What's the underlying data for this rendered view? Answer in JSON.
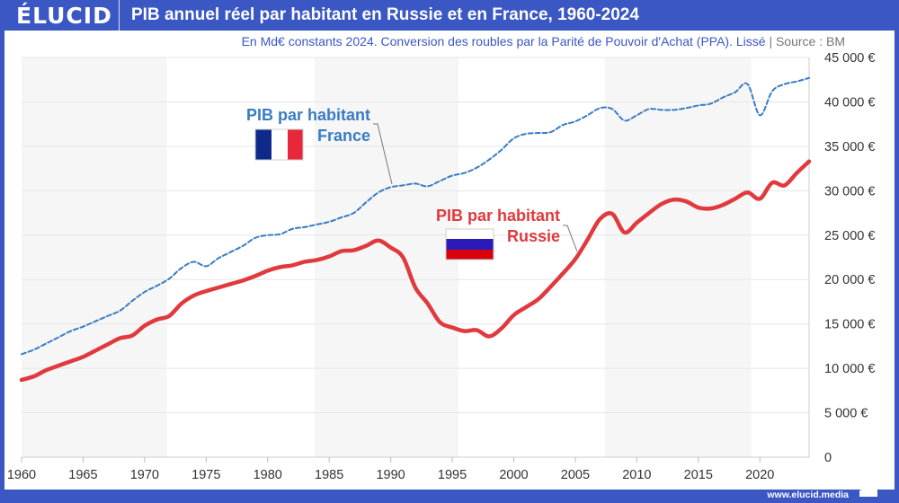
{
  "header": {
    "logo": "ÉLUCID",
    "title": "PIB annuel réel par habitant en Russie et en France, 1960-2024"
  },
  "subtitle": {
    "text": "En Md€ constants 2024. Conversion des roubles par la Parité de Pouvoir d'Achat (PPA). Lissé",
    "separator": "|",
    "source": "Source : BM"
  },
  "footer": {
    "url": "www.elucid.media"
  },
  "colors": {
    "brand": "#3a57c4",
    "france": "#3a7cc4",
    "russia": "#e0393e",
    "band": "#f6f6f6",
    "grid": "#e6e6e6"
  },
  "chart_data": {
    "type": "line",
    "title": "PIB annuel réel par habitant en Russie et en France, 1960-2024",
    "xlim": [
      1960,
      2024
    ],
    "ylim": [
      0,
      45000
    ],
    "x_ticks": [
      1960,
      1965,
      1970,
      1975,
      1980,
      1985,
      1990,
      1995,
      2000,
      2005,
      2010,
      2015,
      2020
    ],
    "x_tick_labels": [
      "1960",
      "1965",
      "1970",
      "1975",
      "1980",
      "1985",
      "1990",
      "1995",
      "2000",
      "2005",
      "2010",
      "2015",
      "2020"
    ],
    "y_ticks": [
      0,
      5000,
      10000,
      15000,
      20000,
      25000,
      30000,
      35000,
      40000,
      45000
    ],
    "y_tick_labels": [
      "0",
      "5 000 €",
      "10 000 €",
      "15 000 €",
      "20 000 €",
      "25 000 €",
      "30 000 €",
      "35 000 €",
      "40 000 €",
      "45 000 €"
    ],
    "y_axis_side": "right",
    "grid": true,
    "shaded_periods": [
      [
        1960,
        1971.8
      ],
      [
        1983.8,
        1995.5
      ],
      [
        2007.4,
        2019.3
      ]
    ],
    "x": [
      1960,
      1961,
      1962,
      1963,
      1964,
      1965,
      1966,
      1967,
      1968,
      1969,
      1970,
      1971,
      1972,
      1973,
      1974,
      1975,
      1976,
      1977,
      1978,
      1979,
      1980,
      1981,
      1982,
      1983,
      1984,
      1985,
      1986,
      1987,
      1988,
      1989,
      1990,
      1991,
      1992,
      1993,
      1994,
      1995,
      1996,
      1997,
      1998,
      1999,
      2000,
      2001,
      2002,
      2003,
      2004,
      2005,
      2006,
      2007,
      2008,
      2009,
      2010,
      2011,
      2012,
      2013,
      2014,
      2015,
      2016,
      2017,
      2018,
      2019,
      2020,
      2021,
      2022,
      2023,
      2024
    ],
    "series": [
      {
        "name": "PIB par habitant France",
        "style": "dashed",
        "color": "#3a7cc4",
        "values": [
          11600,
          12100,
          12800,
          13500,
          14200,
          14700,
          15300,
          15900,
          16500,
          17600,
          18600,
          19300,
          20100,
          21300,
          22000,
          21500,
          22400,
          23100,
          23800,
          24700,
          25000,
          25100,
          25700,
          25900,
          26200,
          26500,
          27000,
          27500,
          28700,
          29800,
          30400,
          30600,
          30800,
          30500,
          31100,
          31700,
          32000,
          32600,
          33500,
          34600,
          35900,
          36400,
          36500,
          36600,
          37400,
          37800,
          38500,
          39300,
          39200,
          37900,
          38500,
          39200,
          39100,
          39100,
          39300,
          39600,
          39800,
          40500,
          41100,
          42000,
          38500,
          41200,
          42000,
          42300,
          42700
        ]
      },
      {
        "name": "PIB par habitant Russie",
        "style": "solid",
        "color": "#e0393e",
        "values": [
          8700,
          9100,
          9800,
          10300,
          10800,
          11300,
          12000,
          12700,
          13400,
          13700,
          14800,
          15500,
          15900,
          17300,
          18200,
          18700,
          19100,
          19500,
          19900,
          20400,
          21000,
          21400,
          21600,
          22000,
          22200,
          22600,
          23200,
          23300,
          23800,
          24400,
          23600,
          22500,
          19100,
          17300,
          15200,
          14600,
          14200,
          14300,
          13600,
          14500,
          16000,
          16900,
          17800,
          19200,
          20700,
          22300,
          24500,
          26800,
          27400,
          25300,
          26400,
          27500,
          28500,
          29000,
          28800,
          28100,
          28000,
          28400,
          29100,
          29800,
          29100,
          30900,
          30600,
          32000,
          33300
        ]
      }
    ],
    "annotations": [
      {
        "line1": "PIB par habitant",
        "line2": "France",
        "flag": "france-flag"
      },
      {
        "line1": "PIB par habitant",
        "line2": "Russie",
        "flag": "russia-flag"
      }
    ]
  }
}
